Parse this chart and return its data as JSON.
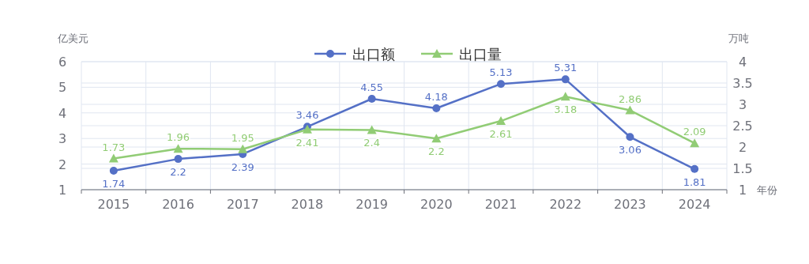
{
  "chart_data": {
    "type": "line",
    "xlabel": "年份",
    "ylabel": "亿美元",
    "y2label": "万吨",
    "categories": [
      "2015",
      "2016",
      "2017",
      "2018",
      "2019",
      "2020",
      "2021",
      "2022",
      "2023",
      "2024"
    ],
    "series": [
      {
        "name": "出口额",
        "color": "#5470c6",
        "marker": "circle",
        "values": [
          1.74,
          2.2,
          2.39,
          3.46,
          4.55,
          4.18,
          5.13,
          5.31,
          3.06,
          1.81
        ]
      },
      {
        "name": "出口量",
        "color": "#91cc75",
        "marker": "triangle",
        "axis": "y2",
        "values": [
          1.73,
          1.96,
          1.95,
          2.41,
          2.4,
          2.2,
          2.61,
          3.18,
          2.86,
          2.09
        ]
      }
    ],
    "ylim": [
      1,
      6
    ],
    "yticks": [
      1,
      2,
      3,
      4,
      5,
      6
    ],
    "y2lim": [
      1,
      4
    ],
    "y2ticks": [
      1,
      1.5,
      2,
      2.5,
      3,
      3.5,
      4
    ],
    "grid": true,
    "legend": "top",
    "data_labels": true
  }
}
